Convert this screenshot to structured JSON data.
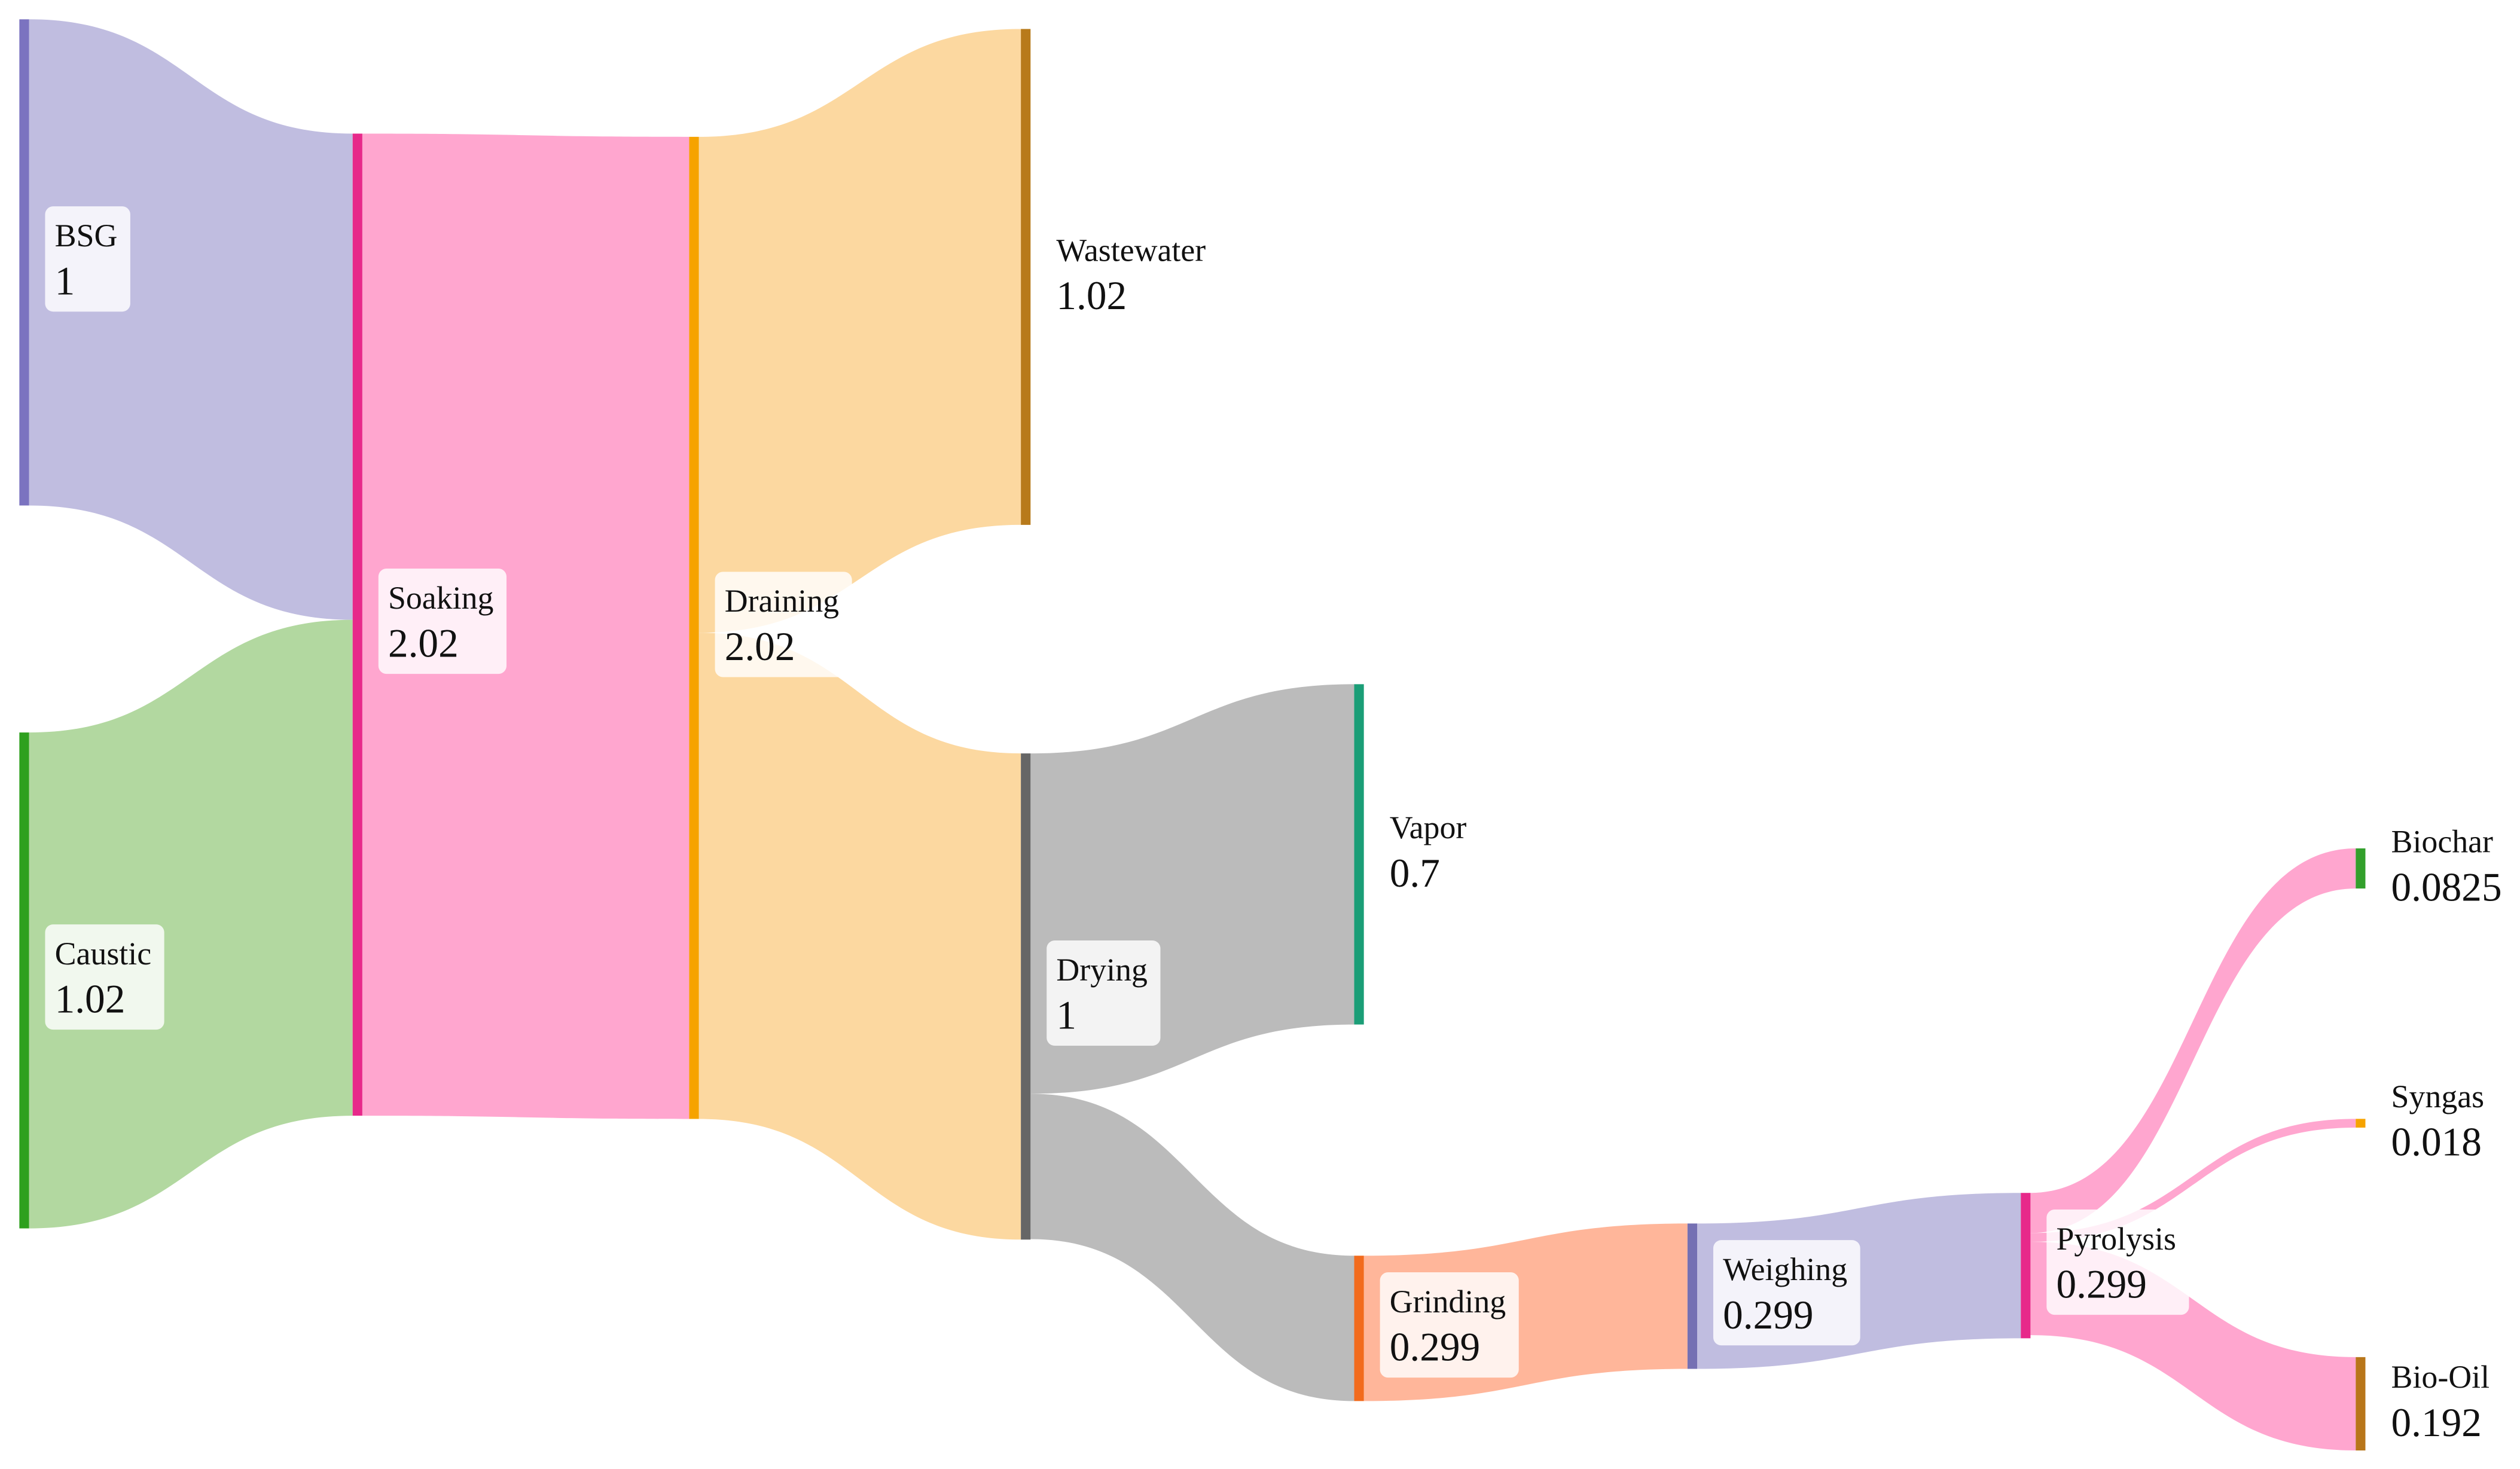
{
  "chart_data": {
    "type": "sankey",
    "nodes": [
      {
        "name": "BSG",
        "value": 1,
        "color": "#7b73c0"
      },
      {
        "name": "Caustic",
        "value": 1.02,
        "color": "#2ea01e"
      },
      {
        "name": "Soaking",
        "value": 2.02,
        "color": "#e7298a"
      },
      {
        "name": "Draining",
        "value": 2.02,
        "color": "#f6a300"
      },
      {
        "name": "Wastewater",
        "value": 1.02,
        "color": "#b87a1a"
      },
      {
        "name": "Drying",
        "value": 1,
        "color": "#666666"
      },
      {
        "name": "Vapor",
        "value": 0.7,
        "color": "#1b9e77"
      },
      {
        "name": "Grinding",
        "value": 0.299,
        "color": "#f26b1d"
      },
      {
        "name": "Weighing",
        "value": 0.299,
        "color": "#7570b3"
      },
      {
        "name": "Pyrolysis",
        "value": 0.299,
        "color": "#e7298a"
      },
      {
        "name": "Biochar",
        "value": 0.0825,
        "color": "#33a02c"
      },
      {
        "name": "Syngas",
        "value": 0.018,
        "color": "#f6a300"
      },
      {
        "name": "Bio-Oil",
        "value": 0.192,
        "color": "#b8761a"
      }
    ],
    "links": [
      {
        "source": "BSG",
        "target": "Soaking",
        "value": 1,
        "color": "#c0bde0"
      },
      {
        "source": "Caustic",
        "target": "Soaking",
        "value": 1.02,
        "color": "#b2d8a0"
      },
      {
        "source": "Soaking",
        "target": "Draining",
        "value": 2.02,
        "color": "#ffa6cf"
      },
      {
        "source": "Draining",
        "target": "Wastewater",
        "value": 1.02,
        "color": "#fcd8a0"
      },
      {
        "source": "Draining",
        "target": "Drying",
        "value": 1,
        "color": "#fcd8a0"
      },
      {
        "source": "Drying",
        "target": "Vapor",
        "value": 0.7,
        "color": "#bbbbbb"
      },
      {
        "source": "Drying",
        "target": "Grinding",
        "value": 0.299,
        "color": "#bbbbbb"
      },
      {
        "source": "Grinding",
        "target": "Weighing",
        "value": 0.299,
        "color": "#ffb69a"
      },
      {
        "source": "Weighing",
        "target": "Pyrolysis",
        "value": 0.299,
        "color": "#c0bde0"
      },
      {
        "source": "Pyrolysis",
        "target": "Biochar",
        "value": 0.0825,
        "color": "#ffa6cf"
      },
      {
        "source": "Pyrolysis",
        "target": "Syngas",
        "value": 0.018,
        "color": "#ffa6cf"
      },
      {
        "source": "Pyrolysis",
        "target": "Bio-Oil",
        "value": 0.192,
        "color": "#ffa6cf"
      }
    ]
  }
}
